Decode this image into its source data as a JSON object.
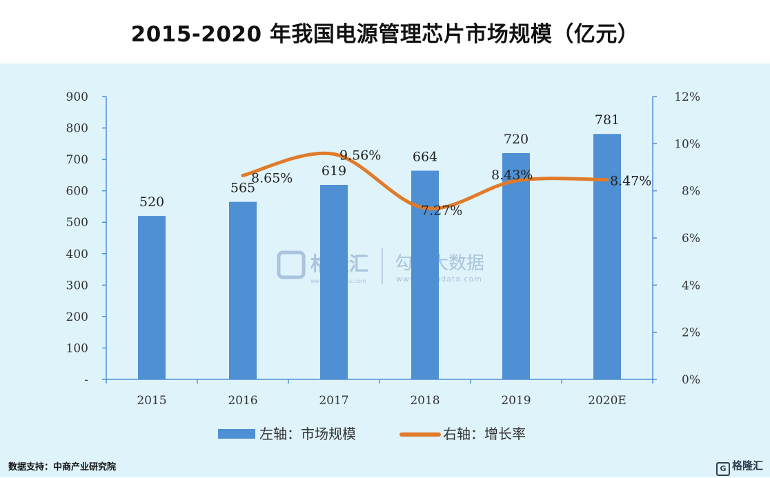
{
  "chart_data": {
    "type": "bar",
    "title": "2015-2020 年我国电源管理芯片市场规模（亿元）",
    "categories": [
      "2015",
      "2016",
      "2017",
      "2018",
      "2019",
      "2020E"
    ],
    "series": [
      {
        "name": "左轴：市场规模",
        "type": "bar",
        "axis": "left",
        "values": [
          520,
          565,
          619,
          664,
          720,
          781
        ],
        "labels": [
          "520",
          "565",
          "619",
          "664",
          "720",
          "781"
        ],
        "color": "#4f8fd4"
      },
      {
        "name": "右轴：增长率",
        "type": "line",
        "axis": "right",
        "values": [
          null,
          8.65,
          9.56,
          7.27,
          8.43,
          8.47
        ],
        "labels": [
          null,
          "8.65%",
          "9.56%",
          "7.27%",
          "8.43%",
          "8.47%"
        ],
        "color": "#e07b2a"
      }
    ],
    "left_axis": {
      "ylim": [
        0,
        900
      ],
      "ticks": [
        0,
        100,
        200,
        300,
        400,
        500,
        600,
        700,
        800,
        900
      ],
      "tick_labels": [
        "-",
        "100",
        "200",
        "300",
        "400",
        "500",
        "600",
        "700",
        "800",
        "900"
      ]
    },
    "right_axis": {
      "ylim": [
        0,
        12
      ],
      "ticks": [
        0,
        2,
        4,
        6,
        8,
        10,
        12
      ],
      "tick_labels": [
        "0%",
        "2%",
        "4%",
        "6%",
        "8%",
        "10%",
        "12%"
      ]
    },
    "grid": false,
    "legend_position": "bottom"
  },
  "watermark": {
    "logo_text": "格隆汇",
    "logo_url_text": "www.gelonghui.com",
    "brand_text": "勾股大数据",
    "brand_url_text": "www.gogudata.com"
  },
  "source": "数据支持：中商产业研究院",
  "corner_logo": "格隆汇",
  "colors": {
    "bar": "#4f8fd4",
    "line": "#e07b2a",
    "panel": "#dff3fb",
    "axis": "#4f8fd4"
  }
}
